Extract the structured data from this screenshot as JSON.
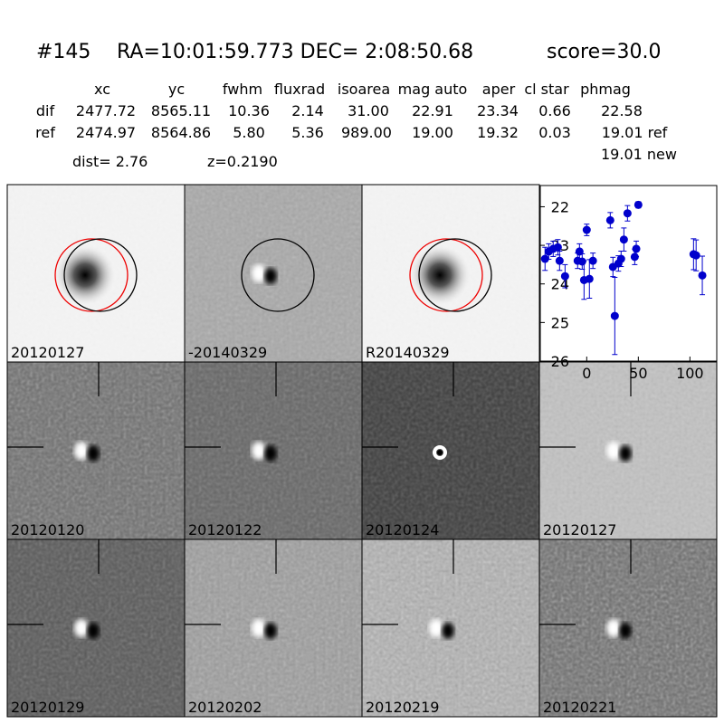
{
  "header": {
    "id": "#145",
    "coords": "RA=10:01:59.773 DEC= 2:08:50.68",
    "score": "score=30.0"
  },
  "table": {
    "columns": [
      "xc",
      "yc",
      "fwhm",
      "fluxrad",
      "isoarea",
      "mag auto",
      "aper",
      "cl star",
      "phmag"
    ],
    "rows": [
      [
        "dif",
        "2477.72",
        "8565.11",
        "10.36",
        "2.14",
        "31.00",
        "22.91",
        "23.34",
        "0.66",
        "22.58"
      ],
      [
        "ref",
        "2474.97",
        "8564.86",
        "5.80",
        "5.36",
        "989.00",
        "19.00",
        "19.32",
        "0.03",
        "19.01 ref"
      ]
    ],
    "extra": "19.01 new"
  },
  "dist": "dist=  2.76",
  "z": "z=0.2190",
  "panels": [
    {
      "label": "20120127"
    },
    {
      "label": "-20140329"
    },
    {
      "label": "R20140329"
    },
    {
      "label": "20120120"
    },
    {
      "label": "20120122"
    },
    {
      "label": "20120124"
    },
    {
      "label": "20120127",
      "label_color": "#ff0000"
    },
    {
      "label": "20120129"
    },
    {
      "label": "20120202"
    },
    {
      "label": "20120219"
    },
    {
      "label": "20120221"
    }
  ],
  "chart_data": {
    "type": "scatter",
    "invert_y": true,
    "xlim": [
      -45,
      126
    ],
    "ylim": [
      21.45,
      26
    ],
    "xticks": [
      0,
      50,
      100
    ],
    "yticks": [
      22,
      23,
      24,
      25,
      26
    ],
    "series": [
      {
        "color": "#0000cc",
        "x": [
          -40.4,
          -36.8,
          -32.5,
          -28,
          -26.3,
          -21,
          -8.8,
          -7,
          -4.4,
          -2.6,
          0,
          2.6,
          6,
          22.8,
          25.4,
          27.2,
          30.7,
          33.3,
          36,
          39.5,
          46.5,
          48,
          50,
          103.5,
          106,
          112
        ],
        "values": [
          23.35,
          23.16,
          23.09,
          23.05,
          23.4,
          23.8,
          23.4,
          23.16,
          23.42,
          23.9,
          22.6,
          23.87,
          23.4,
          22.35,
          23.56,
          24.83,
          23.47,
          23.35,
          22.85,
          22.17,
          23.3,
          23.09,
          21.95,
          23.23,
          23.26,
          23.78
        ],
        "errors": [
          0.3,
          0.2,
          0.2,
          0.2,
          0.25,
          0.3,
          0.2,
          0.2,
          0.2,
          0.5,
          0.15,
          0.5,
          0.2,
          0.2,
          0.25,
          1.0,
          0.2,
          0.2,
          0.3,
          0.2,
          0.2,
          0.2,
          0.08,
          0.4,
          0.4,
          0.5
        ]
      }
    ]
  }
}
